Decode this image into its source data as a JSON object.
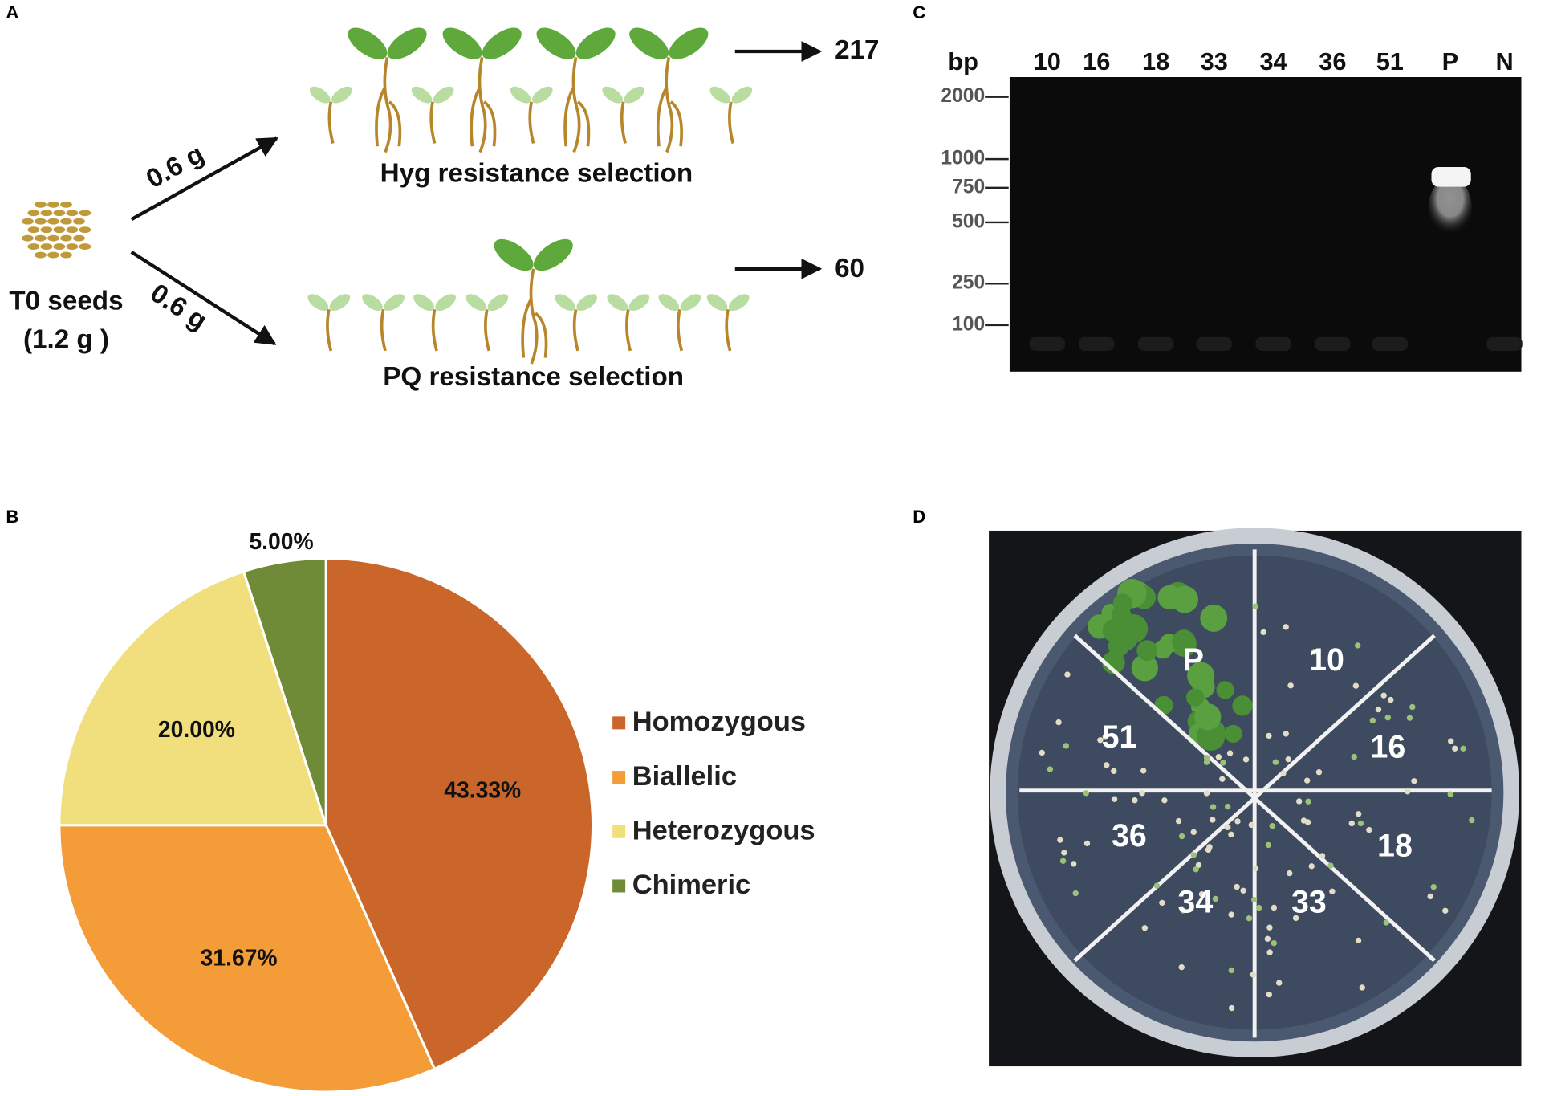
{
  "panel_a": {
    "letter": "A",
    "seed_label": "T0 seeds",
    "seed_amount": "(1.2 g )",
    "upper_arrow": "0.6 g",
    "lower_arrow": "0.6 g",
    "hyg_label": "Hyg resistance selection",
    "pq_label": "PQ resistance selection",
    "hyg_count": "217",
    "pq_count": "60"
  },
  "chart_data": {
    "letter": "B",
    "type": "pie",
    "categories": [
      "Homozygous",
      "Biallelic",
      "Heterozygous",
      "Chimeric"
    ],
    "values": [
      43.33,
      31.67,
      20,
      5
    ],
    "value_labels": [
      "43.33%",
      "31.67%",
      "20.00%",
      "5.00%"
    ],
    "colors": [
      "#cb662b",
      "#f39c38",
      "#f1de7c",
      "#6f8b37"
    ]
  },
  "panel_c": {
    "letter": "C",
    "axis_label": "bp",
    "lanes": [
      "10",
      "16",
      "18",
      "33",
      "34",
      "36",
      "51",
      "P",
      "N"
    ],
    "markers": [
      "2000",
      "1000",
      "750",
      "500",
      "250",
      "100"
    ]
  },
  "panel_d": {
    "letter": "D",
    "sectors": [
      "P",
      "10",
      "16",
      "18",
      "33",
      "34",
      "36",
      "51"
    ]
  }
}
